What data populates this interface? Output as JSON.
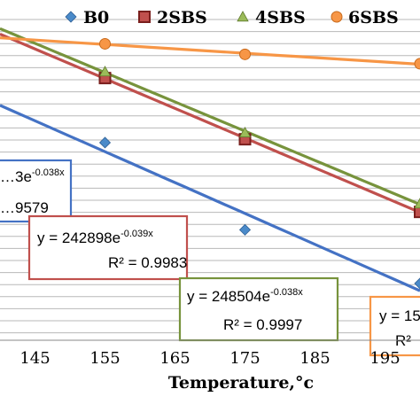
{
  "chart_data": {
    "type": "scatter",
    "xlabel": "Temperature,°c",
    "ylabel": "",
    "title": "",
    "xlim": [
      140,
      200
    ],
    "x_ticks": [
      145,
      155,
      165,
      175,
      185,
      195
    ],
    "grid": "horizontal",
    "legend_position": "top",
    "series": [
      {
        "name": "B0",
        "color": "#4a8ac9",
        "marker": "diamond",
        "x": [
          155,
          175,
          200
        ],
        "y": [
          41000,
          22000,
          15000
        ],
        "trendline": {
          "equation_prefix": "…3e",
          "exponent": "-0.038x",
          "r2_text": "…9579",
          "line_color": "#4472c4"
        }
      },
      {
        "name": "2SBS",
        "color": "#c0504d",
        "marker": "square",
        "x": [
          155,
          175,
          200
        ],
        "y": [
          65000,
          42000,
          25000
        ],
        "trendline": {
          "equation_prefix": "y = 242898e",
          "exponent": "-0.039x",
          "r2_text": "R² = 0.9983",
          "line_color": "#c0504d"
        }
      },
      {
        "name": "4SBS",
        "color": "#9bbb59",
        "marker": "triangle",
        "x": [
          155,
          175,
          200
        ],
        "y": [
          68000,
          44000,
          26500
        ],
        "trendline": {
          "equation_prefix": "y = 248504e",
          "exponent": "-0.038x",
          "r2_text": "R² = 0.9997",
          "line_color": "#77933c"
        }
      },
      {
        "name": "6SBS",
        "color": "#f79646",
        "marker": "circle",
        "x": [
          155,
          175,
          200
        ],
        "y": [
          83000,
          77000,
          72000
        ],
        "trendline": {
          "equation_prefix": "y = 15",
          "exponent": "",
          "r2_text": "R²",
          "line_color": "#f79646"
        }
      }
    ]
  }
}
